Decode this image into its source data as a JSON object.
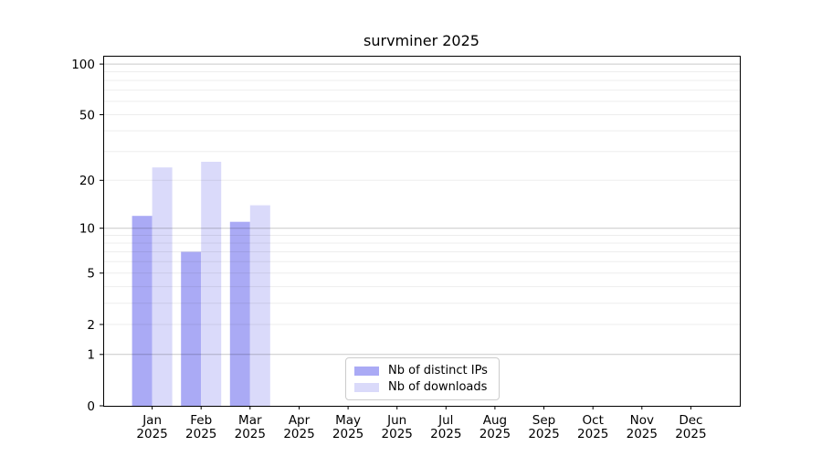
{
  "chart_data": {
    "type": "bar",
    "title": "survminer 2025",
    "categories": [
      "Jan",
      "Feb",
      "Mar",
      "Apr",
      "May",
      "Jun",
      "Jul",
      "Aug",
      "Sep",
      "Oct",
      "Nov",
      "Dec"
    ],
    "year": "2025",
    "series": [
      {
        "name": "Nb of distinct IPs",
        "color": "#aaaaf5",
        "values": [
          12,
          7,
          11,
          0,
          0,
          0,
          0,
          0,
          0,
          0,
          0,
          0
        ]
      },
      {
        "name": "Nb of downloads",
        "color": "#dadafa",
        "values": [
          24,
          26,
          14,
          0,
          0,
          0,
          0,
          0,
          0,
          0,
          0,
          0
        ]
      }
    ],
    "yscale": "log1p",
    "ylim": [
      0,
      112
    ],
    "yticks": [
      0,
      1,
      2,
      5,
      10,
      20,
      50,
      100
    ],
    "grid": {
      "major": [
        1,
        10,
        100
      ],
      "minor": [
        2,
        3,
        4,
        5,
        6,
        7,
        8,
        9,
        20,
        30,
        40,
        50,
        60,
        70,
        80,
        90
      ]
    },
    "legend_position": "bottom-center",
    "colors": {
      "spine": "#000000",
      "major_grid": "rgba(0,0,0,0.21)",
      "minor_grid": "rgba(0,0,0,0.07)",
      "text": "#000000"
    }
  }
}
